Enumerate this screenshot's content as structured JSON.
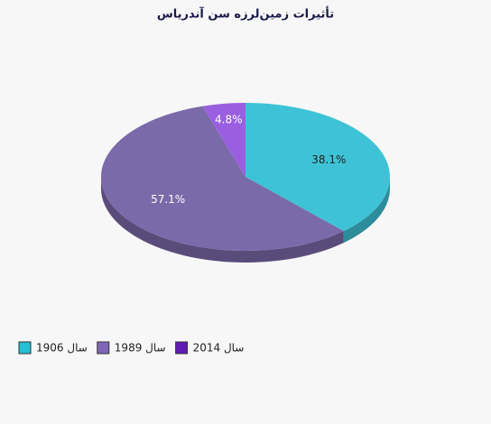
{
  "chart_data": {
    "type": "pie",
    "title": "تأثیرات زمین‌لرزه سن آندریاس",
    "categories": [
      "سال 1906",
      "سال 1989",
      "سال 2014"
    ],
    "values": [
      38.1,
      57.1,
      4.8
    ],
    "value_labels": [
      "38.1%",
      "57.1%",
      "4.8%"
    ],
    "colors": [
      "#3ec3d6",
      "#7b6aa9",
      "#9a5fe0"
    ],
    "legend_colors": [
      "#27bfd3",
      "#7f66b8",
      "#5f1cb3"
    ],
    "legend": "bottom-left"
  }
}
